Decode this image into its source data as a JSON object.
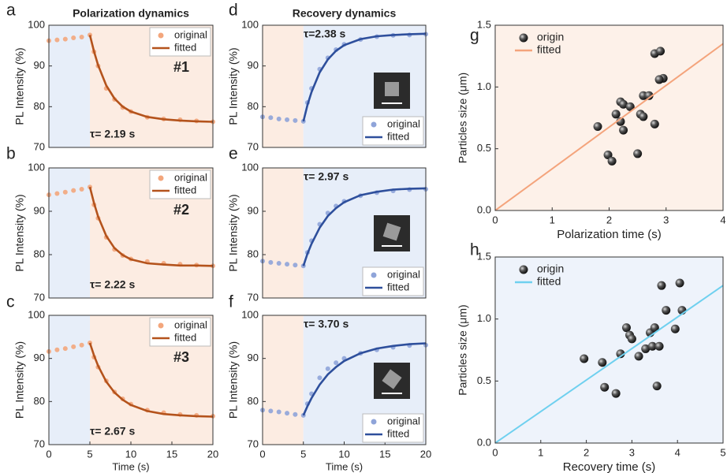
{
  "chart_data": [
    {
      "type": "line",
      "panel": "a",
      "title": "Polarization dynamics",
      "ylabel": "PL Intensity (%)",
      "annotation": "#1",
      "tau_label": "τ= 2.19 s",
      "x": [
        0,
        1,
        2,
        3,
        4,
        5,
        5.5,
        6,
        7,
        8,
        9,
        10,
        12,
        14,
        16,
        18,
        20
      ],
      "xlim": [
        0,
        20
      ],
      "ylim": [
        70,
        100
      ],
      "yticks": [
        70,
        80,
        90,
        100
      ],
      "regions": [
        {
          "from": 0,
          "to": 5,
          "color": "#e7eef9"
        },
        {
          "from": 5,
          "to": 20,
          "color": "#fcece2"
        }
      ],
      "legend_loc": "upper right",
      "series": [
        {
          "name": "original",
          "color": "#f3a67c",
          "marker": "dot",
          "values": [
            96.2,
            96.4,
            96.6,
            96.9,
            97.1,
            97.6,
            93.5,
            90.0,
            84.5,
            81.8,
            79.8,
            78.8,
            77.4,
            77.0,
            76.8,
            76.5,
            76.3
          ]
        },
        {
          "name": "fitted",
          "color": "#b4531c",
          "values": [
            null,
            null,
            null,
            null,
            null,
            97.6,
            93.6,
            90.2,
            85.2,
            82.0,
            80.0,
            78.8,
            77.5,
            76.9,
            76.6,
            76.4,
            76.3
          ]
        }
      ]
    },
    {
      "type": "line",
      "panel": "b",
      "ylabel": "PL Intensity (%)",
      "annotation": "#2",
      "tau_label": "τ= 2.22 s",
      "x": [
        0,
        1,
        2,
        3,
        4,
        5,
        5.5,
        6,
        7,
        8,
        9,
        10,
        12,
        14,
        16,
        18,
        20
      ],
      "xlim": [
        0,
        20
      ],
      "ylim": [
        70,
        100
      ],
      "yticks": [
        70,
        80,
        90,
        100
      ],
      "regions": [
        {
          "from": 0,
          "to": 5,
          "color": "#e7eef9"
        },
        {
          "from": 5,
          "to": 20,
          "color": "#fcece2"
        }
      ],
      "legend_loc": "upper right",
      "series": [
        {
          "name": "original",
          "color": "#f3a67c",
          "marker": "dot",
          "values": [
            93.8,
            94.1,
            94.4,
            94.8,
            95.1,
            95.6,
            91.5,
            88.4,
            84.0,
            81.2,
            79.8,
            79.0,
            78.4,
            78.0,
            77.8,
            77.6,
            77.4
          ]
        },
        {
          "name": "fitted",
          "color": "#b4531c",
          "values": [
            null,
            null,
            null,
            null,
            null,
            95.6,
            91.9,
            88.8,
            84.3,
            81.5,
            79.9,
            78.9,
            78.0,
            77.7,
            77.5,
            77.5,
            77.4
          ]
        }
      ]
    },
    {
      "type": "line",
      "panel": "c",
      "ylabel": "PL Intensity (%)",
      "xlabel": "Time (s)",
      "annotation": "#3",
      "tau_label": "τ= 2.67 s",
      "x": [
        0,
        1,
        2,
        3,
        4,
        5,
        5.5,
        6,
        7,
        8,
        9,
        10,
        12,
        14,
        16,
        18,
        20
      ],
      "xlim": [
        0,
        20
      ],
      "xticks": [
        0,
        5,
        10,
        15,
        20
      ],
      "ylim": [
        70,
        100
      ],
      "yticks": [
        70,
        80,
        90,
        100
      ],
      "regions": [
        {
          "from": 0,
          "to": 5,
          "color": "#e7eef9"
        },
        {
          "from": 5,
          "to": 20,
          "color": "#fcece2"
        }
      ],
      "legend_loc": "upper right",
      "series": [
        {
          "name": "original",
          "color": "#f3a67c",
          "marker": "dot",
          "values": [
            91.6,
            92.0,
            92.3,
            92.7,
            93.1,
            93.6,
            90.3,
            88.0,
            84.8,
            82.2,
            80.6,
            79.4,
            78.0,
            77.4,
            77.0,
            76.8,
            76.6
          ]
        },
        {
          "name": "fitted",
          "color": "#b4531c",
          "values": [
            null,
            null,
            null,
            null,
            null,
            93.6,
            90.7,
            88.3,
            84.6,
            82.1,
            80.4,
            79.2,
            77.8,
            77.1,
            76.8,
            76.6,
            76.5
          ]
        }
      ]
    },
    {
      "type": "line",
      "panel": "d",
      "title": "Recovery dynamics",
      "ylabel": "PL Intensity (%)",
      "tau_label": "τ=2.38 s",
      "x": [
        0,
        1,
        2,
        3,
        4,
        5,
        5.5,
        6,
        7,
        8,
        9,
        10,
        12,
        14,
        16,
        18,
        20
      ],
      "xlim": [
        0,
        20
      ],
      "ylim": [
        70,
        100
      ],
      "yticks": [
        70,
        80,
        90,
        100
      ],
      "regions": [
        {
          "from": 0,
          "to": 5,
          "color": "#fcece2"
        },
        {
          "from": 5,
          "to": 20,
          "color": "#e7eef9"
        }
      ],
      "legend_loc": "lower right",
      "series": [
        {
          "name": "original",
          "color": "#8fa4d9",
          "marker": "dot",
          "values": [
            77.5,
            77.3,
            77.0,
            76.8,
            76.6,
            76.4,
            81.0,
            84.5,
            89.2,
            92.0,
            94.0,
            95.3,
            96.5,
            97.2,
            97.5,
            97.6,
            97.8
          ]
        },
        {
          "name": "fitted",
          "color": "#2e4f9c",
          "values": [
            null,
            null,
            null,
            null,
            null,
            76.4,
            80.4,
            83.6,
            88.4,
            91.6,
            93.7,
            95.1,
            96.6,
            97.3,
            97.6,
            97.8,
            97.9
          ]
        }
      ]
    },
    {
      "type": "line",
      "panel": "e",
      "ylabel": "PL Intensity (%)",
      "tau_label": "τ= 2.97 s",
      "x": [
        0,
        1,
        2,
        3,
        4,
        5,
        5.5,
        6,
        7,
        8,
        9,
        10,
        12,
        14,
        16,
        18,
        20
      ],
      "xlim": [
        0,
        20
      ],
      "ylim": [
        70,
        100
      ],
      "yticks": [
        70,
        80,
        90,
        100
      ],
      "regions": [
        {
          "from": 0,
          "to": 5,
          "color": "#fcece2"
        },
        {
          "from": 5,
          "to": 20,
          "color": "#e7eef9"
        }
      ],
      "legend_loc": "lower right",
      "series": [
        {
          "name": "original",
          "color": "#8fa4d9",
          "marker": "dot",
          "values": [
            78.5,
            78.2,
            78.0,
            77.8,
            77.6,
            77.4,
            80.5,
            83.2,
            87.0,
            89.6,
            91.2,
            92.3,
            93.6,
            94.3,
            94.7,
            95.0,
            95.1
          ]
        },
        {
          "name": "fitted",
          "color": "#2e4f9c",
          "values": [
            null,
            null,
            null,
            null,
            null,
            77.4,
            80.2,
            82.5,
            86.2,
            88.9,
            90.7,
            92.1,
            93.7,
            94.5,
            95.0,
            95.2,
            95.3
          ]
        }
      ]
    },
    {
      "type": "line",
      "panel": "f",
      "ylabel": "PL Intensity (%)",
      "xlabel": "Time (s)",
      "tau_label": "τ= 3.70 s",
      "x": [
        0,
        1,
        2,
        3,
        4,
        5,
        5.5,
        6,
        7,
        8,
        9,
        10,
        12,
        14,
        16,
        18,
        20
      ],
      "xlim": [
        0,
        20
      ],
      "xticks": [
        0,
        5,
        10,
        15,
        20
      ],
      "ylim": [
        70,
        100
      ],
      "yticks": [
        70,
        80,
        90,
        100
      ],
      "regions": [
        {
          "from": 0,
          "to": 5,
          "color": "#fcece2"
        },
        {
          "from": 5,
          "to": 20,
          "color": "#e7eef9"
        }
      ],
      "legend_loc": "lower right",
      "series": [
        {
          "name": "original",
          "color": "#8fa4d9",
          "marker": "dot",
          "values": [
            78.0,
            77.8,
            77.6,
            77.3,
            77.0,
            76.8,
            79.5,
            81.8,
            85.5,
            87.6,
            89.0,
            90.0,
            91.2,
            92.0,
            92.6,
            93.0,
            93.1
          ]
        },
        {
          "name": "fitted",
          "color": "#2e4f9c",
          "values": [
            null,
            null,
            null,
            null,
            null,
            76.8,
            78.9,
            80.8,
            83.9,
            86.3,
            88.0,
            89.4,
            91.2,
            92.3,
            92.9,
            93.3,
            93.5
          ]
        }
      ]
    },
    {
      "type": "scatter",
      "panel": "g",
      "xlabel": "Polarization time (s)",
      "ylabel": "Particles size (μm)",
      "xlim": [
        0,
        4
      ],
      "xticks": [
        0,
        1,
        2,
        3,
        4
      ],
      "ylim": [
        0,
        1.5
      ],
      "yticks": [
        {
          "value": 0,
          "label": "0.0"
        },
        0.5,
        {
          "value": 1,
          "label": "1.0"
        },
        1.5
      ],
      "background": "#fdf1e9",
      "legend_loc": "upper left",
      "series": [
        {
          "name": "origin",
          "color": "#3a3a3a",
          "marker": "dot",
          "x": [
            1.8,
            1.98,
            2.05,
            2.12,
            2.2,
            2.2,
            2.25,
            2.25,
            2.37,
            2.5,
            2.55,
            2.6,
            2.6,
            2.7,
            2.8,
            2.8,
            2.9,
            2.95,
            2.88
          ],
          "values": [
            0.68,
            0.45,
            0.4,
            0.78,
            0.72,
            0.88,
            0.86,
            0.65,
            0.84,
            0.46,
            0.78,
            0.93,
            0.76,
            0.93,
            0.7,
            1.27,
            1.29,
            1.07,
            1.06
          ]
        },
        {
          "name": "fitted",
          "color": "#f4a47c",
          "x": [
            0,
            4
          ],
          "values": [
            0,
            1.35
          ]
        }
      ]
    },
    {
      "type": "scatter",
      "panel": "h",
      "xlabel": "Recovery time (s)",
      "ylabel": "Particles size (μm)",
      "xlim": [
        0,
        5
      ],
      "xticks": [
        0,
        1,
        2,
        3,
        4,
        5
      ],
      "ylim": [
        0,
        1.5
      ],
      "yticks": [
        {
          "value": 0,
          "label": "0.0"
        },
        0.5,
        {
          "value": 1,
          "label": "1.0"
        },
        1.5
      ],
      "background": "#eef3fb",
      "legend_loc": "upper left",
      "series": [
        {
          "name": "origin",
          "color": "#3a3a3a",
          "marker": "dot",
          "x": [
            1.95,
            2.35,
            2.4,
            2.65,
            2.75,
            2.88,
            2.95,
            3.0,
            3.15,
            3.3,
            3.4,
            3.45,
            3.5,
            3.55,
            3.6,
            3.65,
            3.75,
            3.95,
            4.05,
            4.1
          ],
          "values": [
            0.68,
            0.65,
            0.45,
            0.4,
            0.72,
            0.93,
            0.87,
            0.84,
            0.7,
            0.76,
            0.89,
            0.78,
            0.93,
            0.46,
            0.78,
            1.27,
            1.07,
            0.92,
            1.29,
            1.07
          ]
        },
        {
          "name": "fitted",
          "color": "#6fd0ef",
          "x": [
            0,
            5
          ],
          "values": [
            0,
            1.27
          ]
        }
      ]
    }
  ]
}
